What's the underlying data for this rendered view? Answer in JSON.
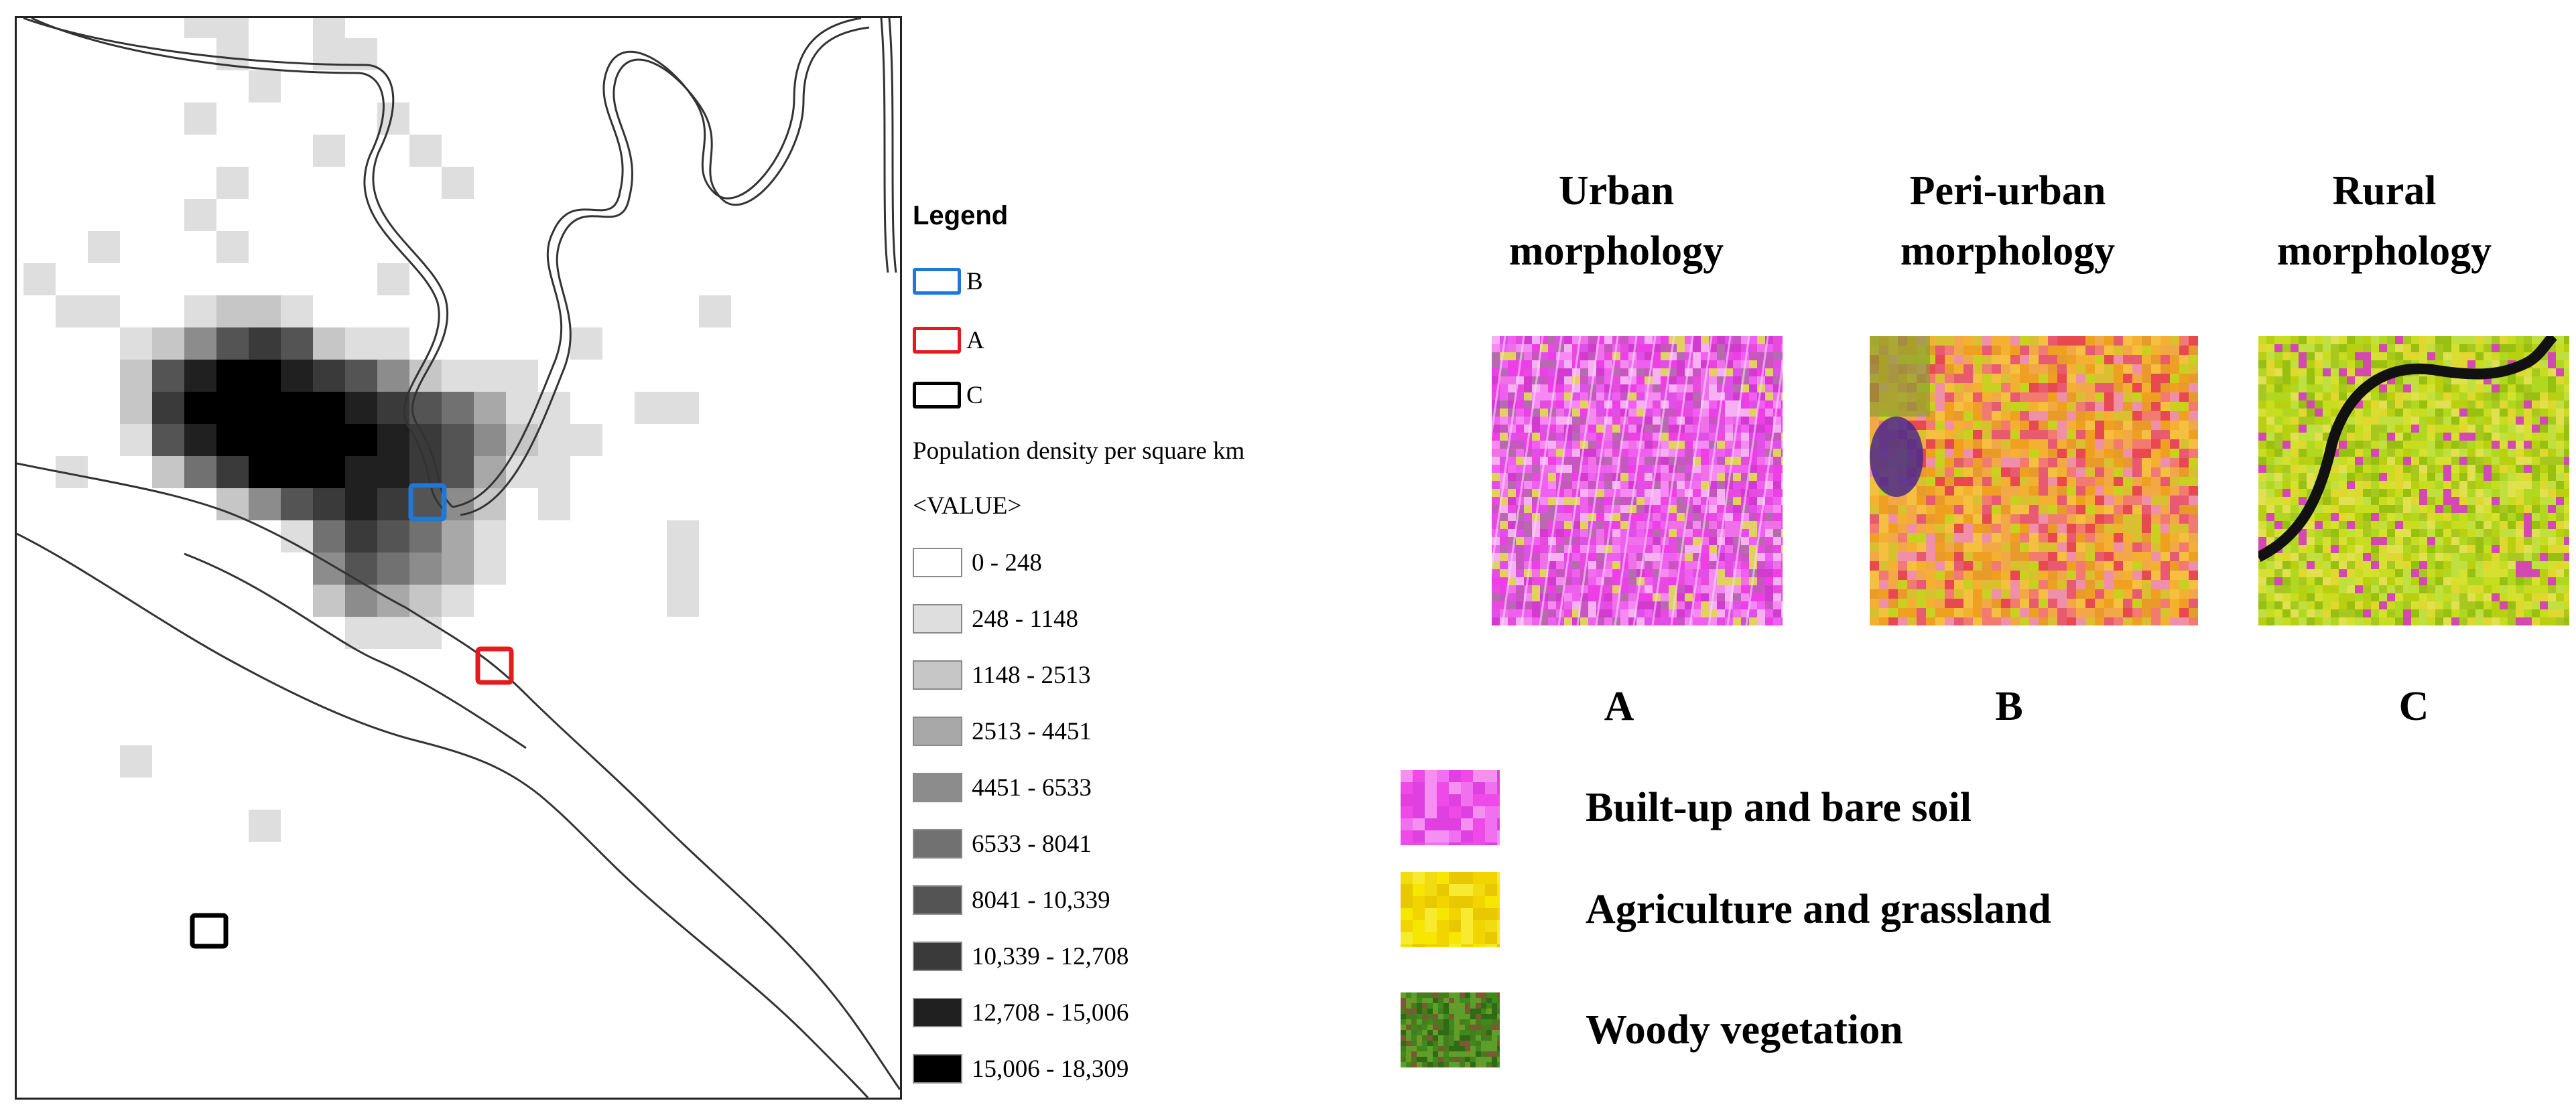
{
  "legend": {
    "title": "Legend",
    "boxes": [
      {
        "label": "B",
        "color": "#1f78d8"
      },
      {
        "label": "A",
        "color": "#e41a1c"
      },
      {
        "label": "C",
        "color": "#000000"
      }
    ],
    "pop_title": "Population density per square km",
    "value_label": "<VALUE>",
    "classes": [
      {
        "label": "0 - 248",
        "color": "#ffffff"
      },
      {
        "label": "248 - 1148",
        "color": "#dedede"
      },
      {
        "label": "1148 - 2513",
        "color": "#c6c6c6"
      },
      {
        "label": "2513 - 4451",
        "color": "#a8a8a8"
      },
      {
        "label": "4451 - 6533",
        "color": "#8c8c8c"
      },
      {
        "label": "6533 - 8041",
        "color": "#717171"
      },
      {
        "label": "8041 - 10,339",
        "color": "#545454"
      },
      {
        "label": "10,339 - 12,708",
        "color": "#3a3a3a"
      },
      {
        "label": "12,708 - 15,006",
        "color": "#202020"
      },
      {
        "label": "15,006 - 18,309",
        "color": "#000000"
      }
    ]
  },
  "panels": [
    {
      "title_line1": "Urban",
      "title_line2": "morphology",
      "letter": "A",
      "style": "urban"
    },
    {
      "title_line1": "Peri-urban",
      "title_line2": "morphology",
      "letter": "B",
      "style": "periurban"
    },
    {
      "title_line1": "Rural",
      "title_line2": "morphology",
      "letter": "C",
      "style": "rural"
    }
  ],
  "land_cover_key": [
    {
      "label": "Built-up and bare soil",
      "color": "#ee44ee"
    },
    {
      "label": "Agriculture and grassland",
      "color": "#f2e200"
    },
    {
      "label": "Woody vegetation",
      "color": "#3f8a1c"
    }
  ]
}
